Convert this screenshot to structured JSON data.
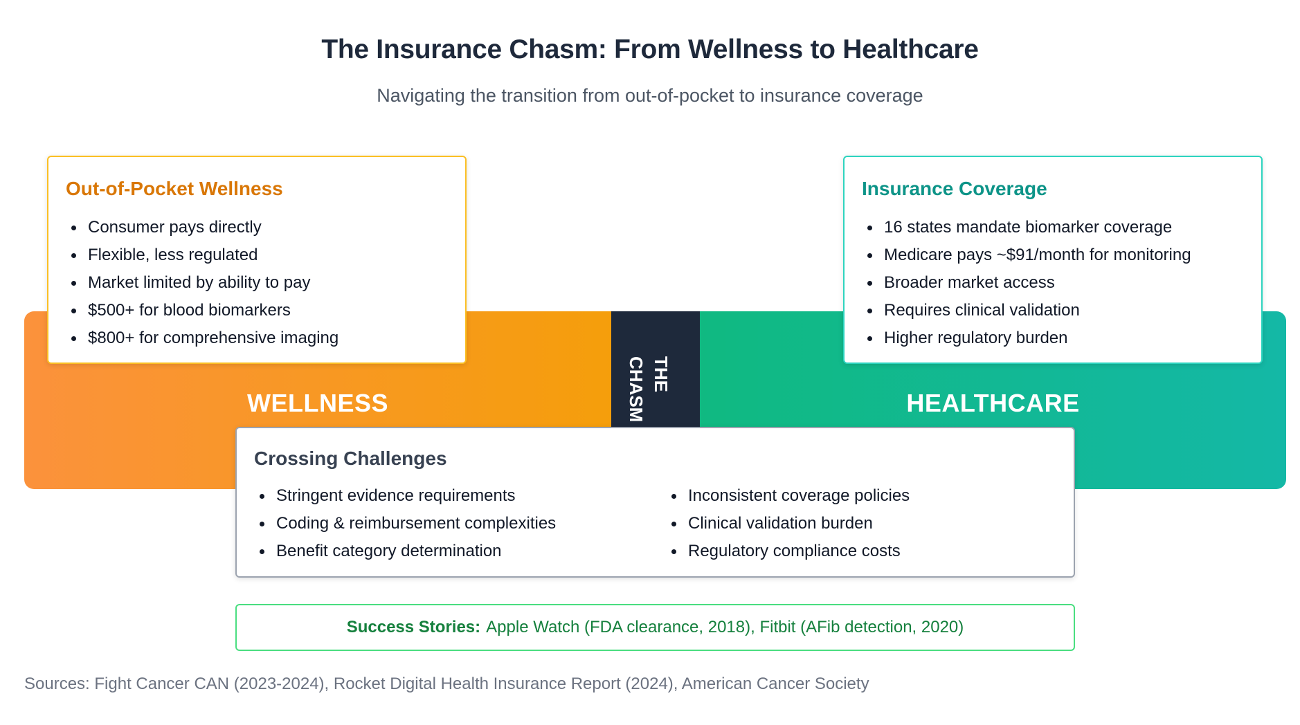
{
  "header": {
    "title": "The Insurance Chasm: From Wellness to Healthcare",
    "subtitle": "Navigating the transition from out-of-pocket to insurance coverage"
  },
  "bands": {
    "wellness_label": "WELLNESS",
    "chasm_line1": "THE",
    "chasm_line2": "CHASM",
    "healthcare_label": "HEALTHCARE",
    "colors": {
      "wellness": "#f59e0b",
      "chasm": "#1e293b",
      "healthcare": "#10b981"
    }
  },
  "wellness_card": {
    "title": "Out-of-Pocket Wellness",
    "items": [
      "Consumer pays directly",
      "Flexible, less regulated",
      "Market limited by ability to pay",
      "$500+ for blood biomarkers",
      "$800+ for comprehensive imaging"
    ]
  },
  "insurance_card": {
    "title": "Insurance Coverage",
    "items": [
      "16 states mandate biomarker coverage",
      "Medicare pays ~$91/month for monitoring",
      "Broader market access",
      "Requires clinical validation",
      "Higher regulatory burden"
    ]
  },
  "challenges_card": {
    "title": "Crossing Challenges",
    "col1": [
      "Stringent evidence requirements",
      "Coding & reimbursement complexities",
      "Benefit category determination"
    ],
    "col2": [
      "Inconsistent coverage policies",
      "Clinical validation burden",
      "Regulatory compliance costs"
    ]
  },
  "success": {
    "label": "Success Stories:",
    "text": "Apple Watch (FDA clearance, 2018), Fitbit (AFib detection, 2020)"
  },
  "sources": "Sources: Fight Cancer CAN (2023-2024), Rocket Digital Health Insurance Report (2024), American Cancer Society"
}
